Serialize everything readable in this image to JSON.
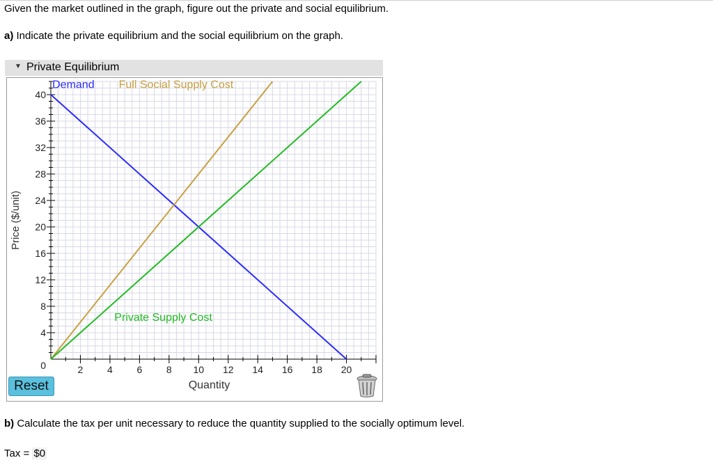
{
  "intro": "Given the market outlined in the graph, figure out the private and social equilibrium.",
  "part_a": {
    "label": "a)",
    "text": "Indicate the private equilibrium and the social equilibrium on the graph."
  },
  "section": {
    "title": "Private Equilibrium"
  },
  "graph": {
    "reset_label": "Reset",
    "trash_icon": "trash-icon"
  },
  "part_b": {
    "label": "b)",
    "text": "Calculate the tax per unit necessary to reduce the quantity supplied to the socially optimum level."
  },
  "tax": {
    "label": "Tax = ",
    "value": "$0"
  },
  "colors": {
    "demand": "#2b2bff",
    "social": "#c8a040",
    "private": "#22bb22",
    "grid": "#d8d8e6"
  },
  "chart_data": {
    "type": "line",
    "xlabel": "Quantity",
    "ylabel": "Price ($/unit)",
    "xlim": [
      0,
      22
    ],
    "ylim": [
      0,
      42
    ],
    "x_ticks": [
      0,
      2,
      4,
      6,
      8,
      10,
      12,
      14,
      16,
      18,
      20
    ],
    "y_ticks": [
      4,
      8,
      12,
      16,
      20,
      24,
      28,
      32,
      36,
      40
    ],
    "origin_label": "0",
    "grid": true,
    "series": [
      {
        "name": "Demand",
        "color": "#2b2bff",
        "points": [
          [
            0,
            40
          ],
          [
            20,
            0
          ]
        ]
      },
      {
        "name": "Full Social Supply Cost",
        "color": "#c8a040",
        "points": [
          [
            0,
            0
          ],
          [
            15,
            42
          ]
        ]
      },
      {
        "name": "Private Supply Cost",
        "color": "#22bb22",
        "points": [
          [
            0,
            0
          ],
          [
            22,
            44
          ]
        ]
      }
    ]
  }
}
